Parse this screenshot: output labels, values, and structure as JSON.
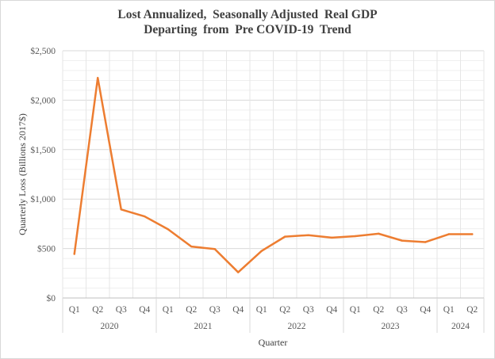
{
  "chart_data": {
    "type": "line",
    "title_line1": "Lost Annualized,  Seasonally Adjusted  Real GDP",
    "title_line2": "Departing  from  Pre COVID-19  Trend",
    "xlabel": "Quarter",
    "ylabel": "Quarterly Loss (Billions 2017$)",
    "ylim": [
      0,
      2500
    ],
    "yticks": [
      0,
      500,
      1000,
      1500,
      2000,
      2500
    ],
    "ytick_labels": [
      "$0",
      "$500",
      "$1,000",
      "$1,500",
      "$2,000",
      "$2,500"
    ],
    "grid": true,
    "line_color": "#ED7D31",
    "categories": [
      "Q1",
      "Q2",
      "Q3",
      "Q4",
      "Q1",
      "Q2",
      "Q3",
      "Q4",
      "Q1",
      "Q2",
      "Q3",
      "Q4",
      "Q1",
      "Q2",
      "Q3",
      "Q4",
      "Q1",
      "Q2"
    ],
    "years": [
      {
        "label": "2020",
        "count": 4
      },
      {
        "label": "2021",
        "count": 4
      },
      {
        "label": "2022",
        "count": 4
      },
      {
        "label": "2023",
        "count": 4
      },
      {
        "label": "2024",
        "count": 2
      }
    ],
    "series": [
      {
        "name": "Quarterly Loss",
        "values": [
          445,
          2225,
          895,
          825,
          695,
          520,
          495,
          260,
          475,
          620,
          635,
          610,
          625,
          650,
          580,
          565,
          645,
          645
        ]
      }
    ]
  }
}
